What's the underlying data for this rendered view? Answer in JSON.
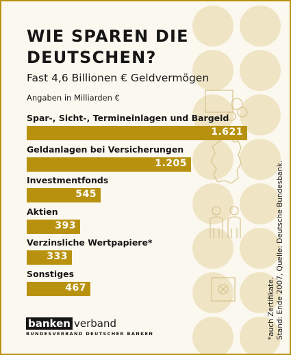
{
  "chart_data": {
    "type": "bar",
    "orientation": "horizontal",
    "title": "WIE SPAREN DIE DEUTSCHEN?",
    "subtitle": "Fast 4,6 Billionen € Geldvermögen",
    "unit_note": "Angaben in Milliarden €",
    "categories": [
      "Spar-, Sicht-, Termineinlagen und Bargeld",
      "Geldanlagen bei Versicherungen",
      "Investmentfonds",
      "Aktien",
      "Verzinsliche Wertpapiere*",
      "Sonstiges"
    ],
    "values": [
      1621,
      1205,
      545,
      393,
      333,
      467
    ],
    "value_labels": [
      "1.621",
      "1.205",
      "545",
      "393",
      "333",
      "467"
    ],
    "xlim": [
      0,
      1700
    ],
    "grid": false,
    "legend": "none"
  },
  "colors": {
    "bar": "#b8920f",
    "background": "#fbf8ef",
    "decor": "#efe4c4",
    "text": "#161616"
  },
  "footnote": {
    "line1": "*auch Zertifikate.",
    "line2": "Stand: Ende 2007, Quelle: Deutsche Bundesbank."
  },
  "logo": {
    "boxed": "banken",
    "rest": "verband",
    "sub": "BUNDESVERBAND DEUTSCHER BANKEN"
  },
  "icons": [
    "coins-icon",
    "germany-map-icon",
    "people-icon",
    "safe-icon"
  ]
}
